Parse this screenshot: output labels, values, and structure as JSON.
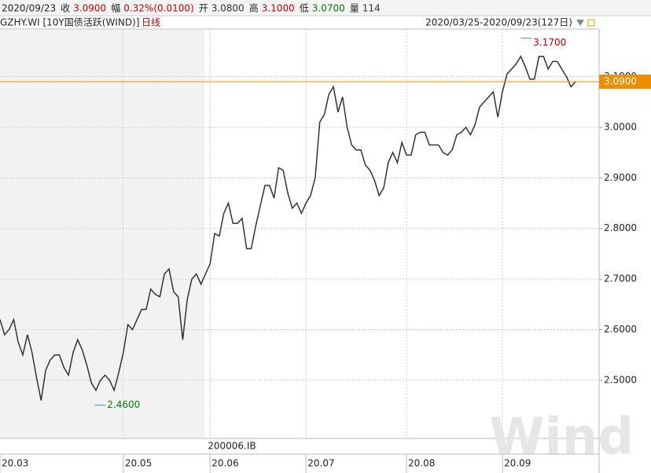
{
  "header": {
    "date": "2020/09/23",
    "items": [
      {
        "label": "收",
        "value": "3.0900",
        "color": "#d00000"
      },
      {
        "label": "幅",
        "value": "0.32%(0.0100)",
        "color": "#d00000"
      },
      {
        "label": "开",
        "value": "3.0800",
        "color": "#333333"
      },
      {
        "label": "高",
        "value": "3.1000",
        "color": "#d00000"
      },
      {
        "label": "低",
        "value": "3.0700",
        "color": "#008000"
      },
      {
        "label": "量",
        "value": "114",
        "color": "#333333"
      }
    ]
  },
  "chart_data": {
    "type": "line",
    "title": "GZHY.WI [10Y国债活跃(WIND)]",
    "subtitle": "日线",
    "date_range": "2020/03/25-2020/09/23(127日)",
    "contract": "200006.IB",
    "watermark": "Wind",
    "categories": [
      "20.03",
      null,
      null,
      null,
      null,
      null,
      null,
      null,
      null,
      null,
      null,
      null,
      null,
      null,
      null,
      null,
      null,
      null,
      null,
      null,
      null,
      null,
      null,
      null,
      null,
      null,
      null,
      "20.05",
      null,
      null,
      null,
      null,
      null,
      null,
      null,
      null,
      null,
      null,
      null,
      null,
      null,
      null,
      null,
      null,
      null,
      null,
      "20.06",
      null,
      null,
      null,
      null,
      null,
      null,
      null,
      null,
      null,
      null,
      null,
      null,
      null,
      null,
      null,
      null,
      null,
      null,
      null,
      null,
      "20.07",
      null,
      null,
      null,
      null,
      null,
      null,
      null,
      null,
      null,
      null,
      null,
      null,
      null,
      null,
      null,
      null,
      null,
      null,
      null,
      null,
      null,
      "20.08",
      null,
      null,
      null,
      null,
      null,
      null,
      null,
      null,
      null,
      null,
      null,
      null,
      null,
      null,
      null,
      null,
      null,
      null,
      null,
      null,
      "20.09",
      null,
      null,
      null,
      null,
      null,
      null,
      null,
      null,
      null,
      null,
      null,
      null,
      null,
      null,
      null,
      null
    ],
    "values": [
      2.62,
      2.59,
      2.6,
      2.62,
      2.575,
      2.55,
      2.59,
      2.555,
      2.505,
      2.46,
      2.52,
      2.54,
      2.55,
      2.55,
      2.525,
      2.51,
      2.555,
      2.58,
      2.56,
      2.53,
      2.495,
      2.48,
      2.5,
      2.51,
      2.5,
      2.48,
      2.515,
      2.555,
      2.61,
      2.6,
      2.62,
      2.64,
      2.64,
      2.68,
      2.67,
      2.665,
      2.71,
      2.72,
      2.675,
      2.665,
      2.58,
      2.66,
      2.7,
      2.71,
      2.69,
      2.71,
      2.73,
      2.79,
      2.785,
      2.83,
      2.85,
      2.81,
      2.81,
      2.82,
      2.76,
      2.76,
      2.805,
      2.845,
      2.885,
      2.885,
      2.86,
      2.92,
      2.915,
      2.87,
      2.84,
      2.85,
      2.83,
      2.85,
      2.865,
      2.9,
      3.01,
      3.025,
      3.065,
      3.08,
      3.03,
      3.06,
      3.0,
      2.965,
      2.955,
      2.955,
      2.925,
      2.915,
      2.895,
      2.865,
      2.88,
      2.93,
      2.95,
      2.93,
      2.97,
      2.945,
      2.945,
      2.985,
      2.99,
      2.99,
      2.965,
      2.965,
      2.965,
      2.95,
      2.945,
      2.955,
      2.985,
      2.99,
      3.0,
      2.985,
      3.005,
      3.04,
      3.05,
      3.06,
      3.07,
      3.02,
      3.07,
      3.105,
      3.115,
      3.125,
      3.14,
      3.12,
      3.095,
      3.095,
      3.14,
      3.14,
      3.115,
      3.13,
      3.13,
      3.115,
      3.1,
      3.08,
      3.09
    ],
    "color": "#333333",
    "ylim": [
      2.385,
      3.194
    ],
    "yticks": [
      {
        "value": 2.5,
        "label": "2.5000"
      },
      {
        "value": 2.6,
        "label": "2.6000"
      },
      {
        "value": 2.7,
        "label": "2.7000"
      },
      {
        "value": 2.8,
        "label": "2.8000"
      },
      {
        "value": 2.9,
        "label": "2.9000"
      },
      {
        "value": 3.0,
        "label": "3.0000"
      },
      {
        "value": 3.1,
        "label": "3.1000"
      }
    ],
    "grid": true,
    "last_price": {
      "value": 3.09,
      "label": "3.0900",
      "color": "#f08c00"
    },
    "high": {
      "value": 3.17,
      "label": "3.1700",
      "color": "#c00000"
    },
    "low": {
      "value": 2.46,
      "label": "2.4600",
      "color": "#008000"
    }
  }
}
